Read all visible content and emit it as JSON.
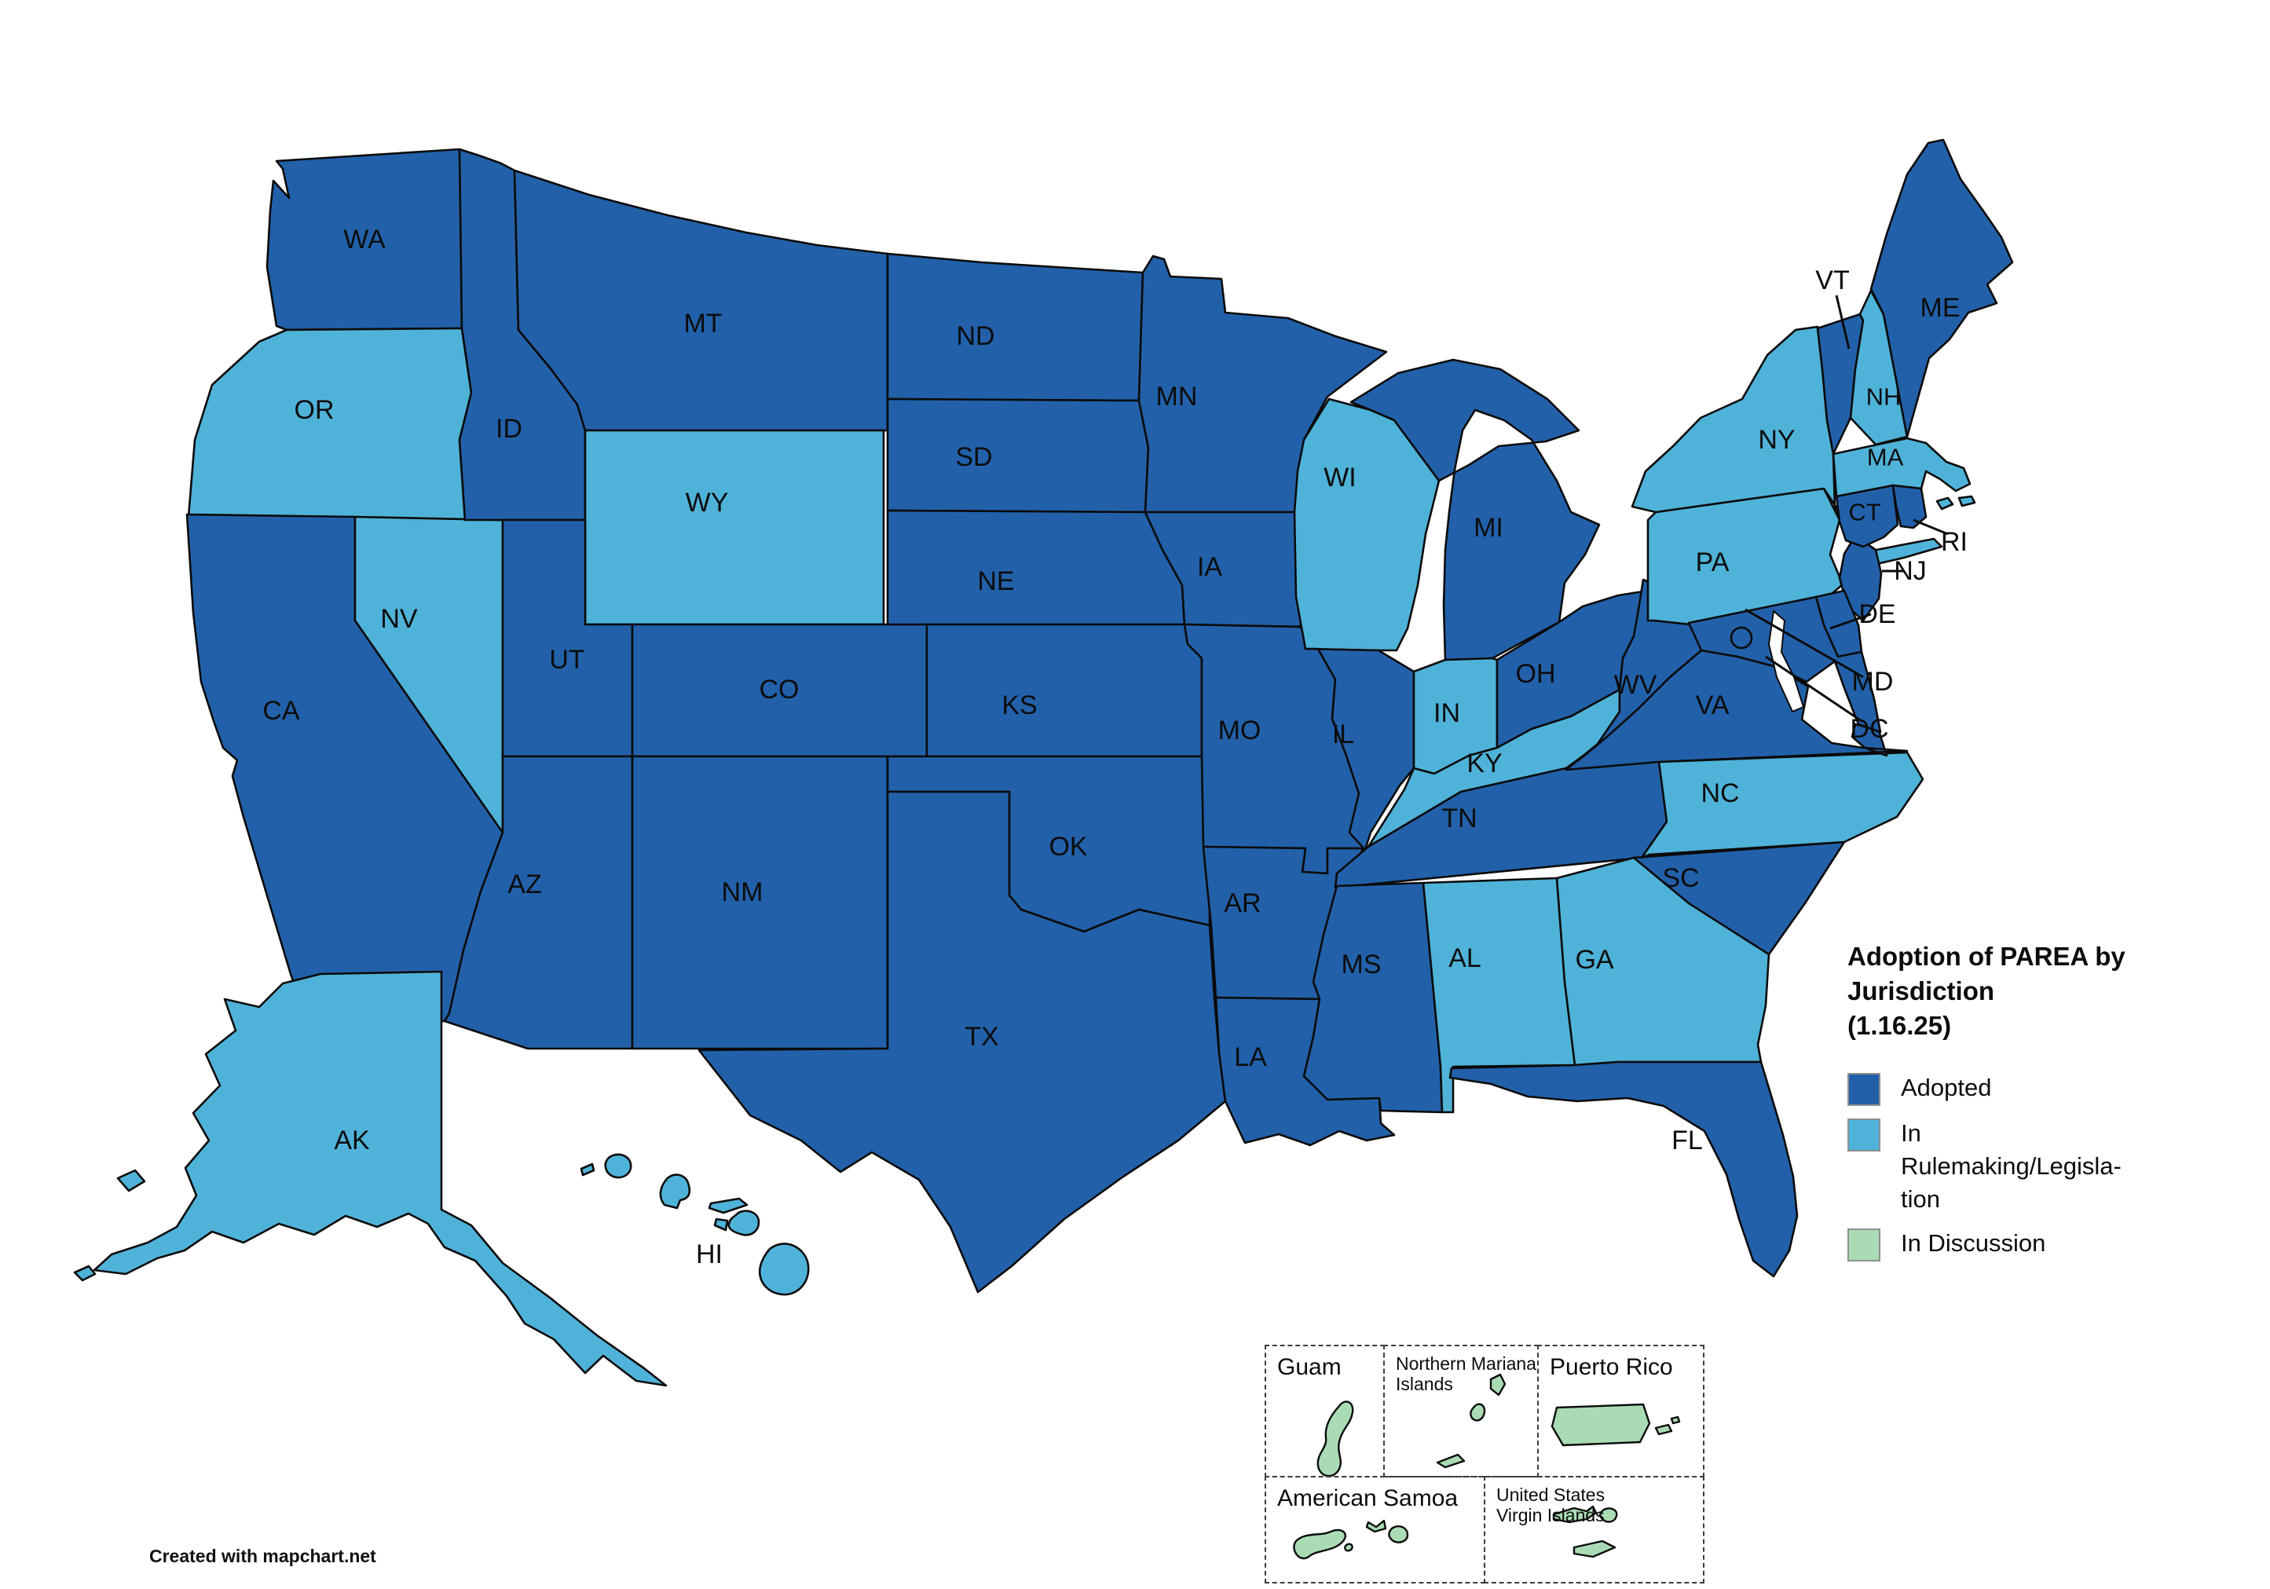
{
  "title": "Adoption of PAREA by\nJurisdiction\n(1.16.25)",
  "legend": {
    "items": [
      {
        "id": "adopted",
        "label": "Adopted",
        "color": "#2261aa"
      },
      {
        "id": "rulemaking",
        "label": "In\nRulemaking/Legisla-\ntion",
        "color": "#4fb3d9"
      },
      {
        "id": "discussion",
        "label": "In Discussion",
        "color": "#a9dcb4"
      }
    ]
  },
  "states": [
    {
      "abbr": "WA",
      "status": "adopted"
    },
    {
      "abbr": "OR",
      "status": "rulemaking"
    },
    {
      "abbr": "CA",
      "status": "adopted"
    },
    {
      "abbr": "NV",
      "status": "rulemaking"
    },
    {
      "abbr": "ID",
      "status": "adopted"
    },
    {
      "abbr": "MT",
      "status": "adopted"
    },
    {
      "abbr": "WY",
      "status": "rulemaking"
    },
    {
      "abbr": "UT",
      "status": "adopted"
    },
    {
      "abbr": "CO",
      "status": "adopted"
    },
    {
      "abbr": "AZ",
      "status": "adopted"
    },
    {
      "abbr": "NM",
      "status": "adopted"
    },
    {
      "abbr": "ND",
      "status": "adopted"
    },
    {
      "abbr": "SD",
      "status": "adopted"
    },
    {
      "abbr": "NE",
      "status": "adopted"
    },
    {
      "abbr": "KS",
      "status": "adopted"
    },
    {
      "abbr": "OK",
      "status": "adopted"
    },
    {
      "abbr": "TX",
      "status": "adopted"
    },
    {
      "abbr": "MN",
      "status": "adopted"
    },
    {
      "abbr": "IA",
      "status": "adopted"
    },
    {
      "abbr": "MO",
      "status": "adopted"
    },
    {
      "abbr": "AR",
      "status": "adopted"
    },
    {
      "abbr": "LA",
      "status": "adopted"
    },
    {
      "abbr": "WI",
      "status": "rulemaking"
    },
    {
      "abbr": "IL",
      "status": "adopted"
    },
    {
      "abbr": "IN",
      "status": "rulemaking"
    },
    {
      "abbr": "MI",
      "status": "adopted"
    },
    {
      "abbr": "OH",
      "status": "adopted"
    },
    {
      "abbr": "KY",
      "status": "rulemaking"
    },
    {
      "abbr": "TN",
      "status": "adopted"
    },
    {
      "abbr": "MS",
      "status": "adopted"
    },
    {
      "abbr": "AL",
      "status": "rulemaking"
    },
    {
      "abbr": "GA",
      "status": "rulemaking"
    },
    {
      "abbr": "FL",
      "status": "adopted"
    },
    {
      "abbr": "SC",
      "status": "adopted"
    },
    {
      "abbr": "NC",
      "status": "rulemaking"
    },
    {
      "abbr": "VA",
      "status": "adopted"
    },
    {
      "abbr": "WV",
      "status": "adopted"
    },
    {
      "abbr": "PA",
      "status": "rulemaking"
    },
    {
      "abbr": "NY",
      "status": "rulemaking"
    },
    {
      "abbr": "NJ",
      "status": "adopted"
    },
    {
      "abbr": "DE",
      "status": "adopted"
    },
    {
      "abbr": "MD",
      "status": "adopted"
    },
    {
      "abbr": "DC",
      "status": "adopted"
    },
    {
      "abbr": "VT",
      "status": "adopted"
    },
    {
      "abbr": "NH",
      "status": "rulemaking"
    },
    {
      "abbr": "ME",
      "status": "adopted"
    },
    {
      "abbr": "MA",
      "status": "rulemaking"
    },
    {
      "abbr": "CT",
      "status": "adopted"
    },
    {
      "abbr": "RI",
      "status": "adopted"
    },
    {
      "abbr": "AK",
      "status": "rulemaking"
    },
    {
      "abbr": "HI",
      "status": "rulemaking"
    }
  ],
  "territories": [
    {
      "name": "Guam",
      "status": "discussion"
    },
    {
      "name": "Northern Mariana\nIslands",
      "status": "discussion"
    },
    {
      "name": "Puerto Rico",
      "status": "discussion"
    },
    {
      "name": "American Samoa",
      "status": "discussion"
    },
    {
      "name": "United States\nVirgin Islands",
      "status": "discussion"
    }
  ],
  "attribution": "Created with mapchart.net"
}
